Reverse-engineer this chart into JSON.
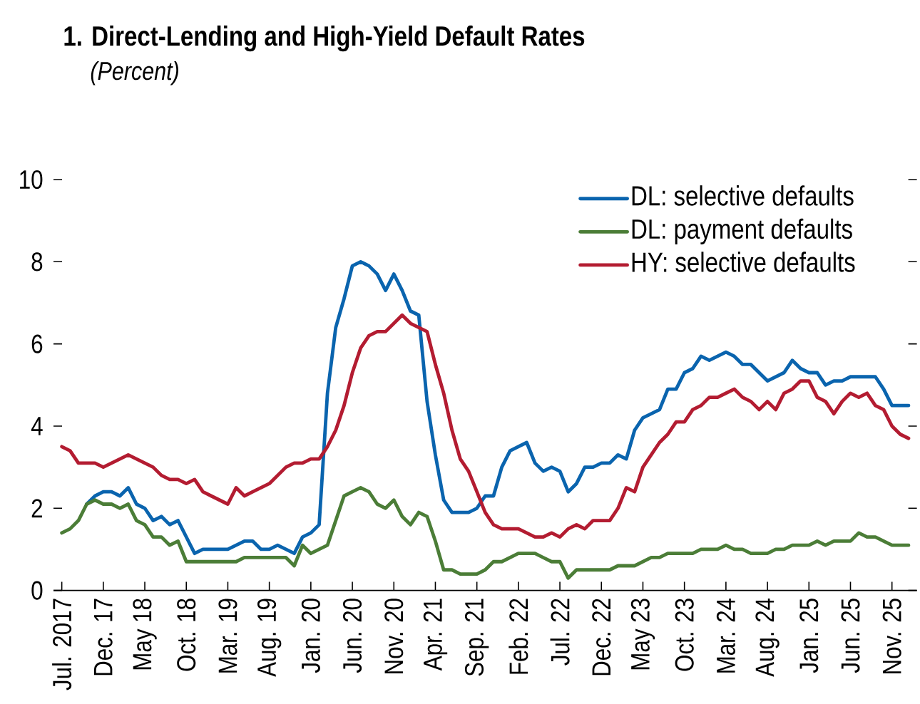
{
  "chart_data": {
    "type": "line",
    "title": "1. Direct-Lending and High-Yield Default Rates",
    "subtitle": "(Percent)",
    "xlim": [
      "2017-06",
      "2026-02"
    ],
    "xticks": [
      {
        "value": "2017-07",
        "label": "Jul. 2017"
      },
      {
        "value": "2017-12",
        "label": "Dec. 17"
      },
      {
        "value": "2018-05",
        "label": "May 18"
      },
      {
        "value": "2018-10",
        "label": "Oct. 18"
      },
      {
        "value": "2019-03",
        "label": "Mar. 19"
      },
      {
        "value": "2019-08",
        "label": "Aug. 19"
      },
      {
        "value": "2020-01",
        "label": "Jan. 20"
      },
      {
        "value": "2020-06",
        "label": "Jun. 20"
      },
      {
        "value": "2020-11",
        "label": "Nov. 20"
      },
      {
        "value": "2021-04",
        "label": "Apr. 21"
      },
      {
        "value": "2021-09",
        "label": "Sep. 21"
      },
      {
        "value": "2022-02",
        "label": "Feb. 22"
      },
      {
        "value": "2022-07",
        "label": "Jul. 22"
      },
      {
        "value": "2022-12",
        "label": "Dec. 22"
      },
      {
        "value": "2023-05",
        "label": "May 23"
      },
      {
        "value": "2023-10",
        "label": "Oct. 23"
      },
      {
        "value": "2024-03",
        "label": "Mar. 24"
      },
      {
        "value": "2024-08",
        "label": "Aug. 24"
      },
      {
        "value": "2025-01",
        "label": "Jan. 25"
      },
      {
        "value": "2025-06",
        "label": "Jun. 25"
      },
      {
        "value": "2025-11",
        "label": "Nov. 25"
      }
    ],
    "ylim": [
      0,
      10
    ],
    "yticks": [
      0,
      2,
      4,
      6,
      8,
      10
    ],
    "legend": "top right",
    "x": [
      "2017-07",
      "2017-08",
      "2017-09",
      "2017-10",
      "2017-11",
      "2017-12",
      "2018-01",
      "2018-02",
      "2018-03",
      "2018-04",
      "2018-05",
      "2018-06",
      "2018-07",
      "2018-08",
      "2018-09",
      "2018-10",
      "2018-11",
      "2018-12",
      "2019-01",
      "2019-02",
      "2019-03",
      "2019-04",
      "2019-05",
      "2019-06",
      "2019-07",
      "2019-08",
      "2019-09",
      "2019-10",
      "2019-11",
      "2019-12",
      "2020-01",
      "2020-02",
      "2020-03",
      "2020-04",
      "2020-05",
      "2020-06",
      "2020-07",
      "2020-08",
      "2020-09",
      "2020-10",
      "2020-11",
      "2020-12",
      "2021-01",
      "2021-02",
      "2021-03",
      "2021-04",
      "2021-05",
      "2021-06",
      "2021-07",
      "2021-08",
      "2021-09",
      "2021-10",
      "2021-11",
      "2021-12",
      "2022-01",
      "2022-02",
      "2022-03",
      "2022-04",
      "2022-05",
      "2022-06",
      "2022-07",
      "2022-08",
      "2022-09",
      "2022-10",
      "2022-11",
      "2022-12",
      "2023-01",
      "2023-02",
      "2023-03",
      "2023-04",
      "2023-05",
      "2023-06",
      "2023-07",
      "2023-08",
      "2023-09",
      "2023-10",
      "2023-11",
      "2023-12",
      "2024-01",
      "2024-02",
      "2024-03",
      "2024-04",
      "2024-05",
      "2024-06",
      "2024-07",
      "2024-08",
      "2024-09",
      "2024-10",
      "2024-11",
      "2024-12",
      "2025-01",
      "2025-02",
      "2025-03",
      "2025-04",
      "2025-05",
      "2025-06",
      "2025-07",
      "2025-08",
      "2025-09",
      "2025-10",
      "2025-11",
      "2025-12",
      "2026-01"
    ],
    "series": [
      {
        "name": "DL: selective defaults",
        "color": "#0a64ae",
        "x": [
          "2017-10",
          "2017-11",
          "2017-12",
          "2018-01",
          "2018-02",
          "2018-03",
          "2018-04",
          "2018-05",
          "2018-06",
          "2018-07",
          "2018-08",
          "2018-09",
          "2018-10",
          "2018-11",
          "2018-12",
          "2019-03",
          "2019-04",
          "2019-05",
          "2019-06",
          "2019-07",
          "2019-08",
          "2019-09",
          "2019-10",
          "2019-11",
          "2019-12",
          "2020-01",
          "2020-02",
          "2020-03",
          "2020-04",
          "2020-05",
          "2020-06",
          "2020-07",
          "2020-08",
          "2020-09",
          "2020-10",
          "2020-11",
          "2020-12",
          "2021-01",
          "2021-02",
          "2021-03",
          "2021-04",
          "2021-05",
          "2021-06",
          "2021-08",
          "2021-09",
          "2021-10",
          "2021-11",
          "2021-12",
          "2022-01",
          "2022-02",
          "2022-03",
          "2022-04",
          "2022-05",
          "2022-06",
          "2022-07",
          "2022-08",
          "2022-09",
          "2022-10",
          "2022-11",
          "2022-12",
          "2023-01",
          "2023-02",
          "2023-03",
          "2023-04",
          "2023-05",
          "2023-06",
          "2023-07",
          "2023-08",
          "2023-09",
          "2023-10",
          "2023-11",
          "2023-12",
          "2024-01",
          "2024-02",
          "2024-03",
          "2024-04",
          "2024-05",
          "2024-06",
          "2024-07",
          "2024-08",
          "2024-09",
          "2024-10",
          "2024-11",
          "2024-12",
          "2025-01",
          "2025-02",
          "2025-03",
          "2025-04",
          "2025-05",
          "2025-06",
          "2025-09",
          "2025-10",
          "2025-11",
          "2026-01"
        ],
        "values": [
          2.1,
          2.3,
          2.4,
          2.4,
          2.3,
          2.5,
          2.1,
          2.0,
          1.7,
          1.8,
          1.6,
          1.7,
          1.3,
          0.9,
          1.0,
          1.0,
          1.1,
          1.2,
          1.2,
          1.0,
          1.0,
          1.1,
          1.0,
          0.9,
          1.3,
          1.4,
          1.6,
          4.8,
          6.4,
          7.1,
          7.9,
          8.0,
          7.9,
          7.7,
          7.3,
          7.7,
          7.3,
          6.8,
          6.7,
          4.6,
          3.3,
          2.2,
          1.9,
          1.9,
          2.0,
          2.3,
          2.3,
          3.0,
          3.4,
          3.5,
          3.6,
          3.1,
          2.9,
          3.0,
          2.9,
          2.4,
          2.6,
          3.0,
          3.0,
          3.1,
          3.1,
          3.3,
          3.2,
          3.9,
          4.2,
          4.3,
          4.4,
          4.9,
          4.9,
          5.3,
          5.4,
          5.7,
          5.6,
          5.7,
          5.8,
          5.7,
          5.5,
          5.5,
          5.3,
          5.1,
          5.2,
          5.3,
          5.6,
          5.4,
          5.3,
          5.3,
          5.0,
          5.1,
          5.1,
          5.2,
          5.2,
          4.9,
          4.5,
          4.5
        ]
      },
      {
        "name": "DL: payment defaults",
        "color": "#4b7d37",
        "x": [
          "2017-07",
          "2017-08",
          "2017-09",
          "2017-10",
          "2017-11",
          "2017-12",
          "2018-01",
          "2018-02",
          "2018-03",
          "2018-04",
          "2018-05",
          "2018-06",
          "2018-07",
          "2018-08",
          "2018-09",
          "2018-10",
          "2019-04",
          "2019-05",
          "2019-10",
          "2019-11",
          "2019-12",
          "2020-01",
          "2020-03",
          "2020-04",
          "2020-05",
          "2020-06",
          "2020-07",
          "2020-08",
          "2020-09",
          "2020-10",
          "2020-11",
          "2020-12",
          "2021-01",
          "2021-02",
          "2021-03",
          "2021-04",
          "2021-05",
          "2021-06",
          "2021-07",
          "2021-09",
          "2021-10",
          "2021-11",
          "2021-12",
          "2022-02",
          "2022-04",
          "2022-05",
          "2022-06",
          "2022-07",
          "2022-08",
          "2022-09",
          "2023-01",
          "2023-02",
          "2023-04",
          "2023-06",
          "2023-07",
          "2023-08",
          "2023-11",
          "2023-12",
          "2024-02",
          "2024-03",
          "2024-04",
          "2024-05",
          "2024-06",
          "2024-08",
          "2024-09",
          "2024-10",
          "2024-11",
          "2025-01",
          "2025-02",
          "2025-03",
          "2025-04",
          "2025-06",
          "2025-07",
          "2025-08",
          "2025-09",
          "2025-11",
          "2026-01"
        ],
        "values": [
          1.4,
          1.5,
          1.7,
          2.1,
          2.2,
          2.1,
          2.1,
          2.0,
          2.1,
          1.7,
          1.6,
          1.3,
          1.3,
          1.1,
          1.2,
          0.7,
          0.7,
          0.8,
          0.8,
          0.6,
          1.1,
          0.9,
          1.1,
          1.7,
          2.3,
          2.4,
          2.5,
          2.4,
          2.1,
          2.0,
          2.2,
          1.8,
          1.6,
          1.9,
          1.8,
          1.2,
          0.5,
          0.5,
          0.4,
          0.4,
          0.5,
          0.7,
          0.7,
          0.9,
          0.9,
          0.8,
          0.7,
          0.7,
          0.3,
          0.5,
          0.5,
          0.6,
          0.6,
          0.8,
          0.8,
          0.9,
          0.9,
          1.0,
          1.0,
          1.1,
          1.0,
          1.0,
          0.9,
          0.9,
          1.0,
          1.0,
          1.1,
          1.1,
          1.2,
          1.1,
          1.2,
          1.2,
          1.4,
          1.3,
          1.3,
          1.1,
          1.1
        ]
      },
      {
        "name": "HY: selective defaults",
        "color": "#b31c31",
        "values": [
          3.5,
          3.4,
          3.1,
          3.1,
          3.1,
          3.0,
          3.1,
          3.2,
          3.3,
          3.2,
          3.1,
          3.0,
          2.8,
          2.7,
          2.7,
          2.6,
          2.7,
          2.4,
          2.3,
          2.2,
          2.1,
          2.5,
          2.3,
          2.4,
          2.5,
          2.6,
          2.8,
          3.0,
          3.1,
          3.1,
          3.2,
          3.2,
          3.5,
          3.9,
          4.5,
          5.3,
          5.9,
          6.2,
          6.3,
          6.3,
          6.5,
          6.7,
          6.5,
          6.4,
          6.3,
          5.5,
          4.8,
          3.9,
          3.2,
          2.9,
          2.4,
          1.9,
          1.6,
          1.5,
          1.5,
          1.5,
          1.4,
          1.3,
          1.3,
          1.4,
          1.3,
          1.5,
          1.6,
          1.5,
          1.7,
          1.7,
          1.7,
          2.0,
          2.5,
          2.4,
          3.0,
          3.3,
          3.6,
          3.8,
          4.1,
          4.1,
          4.4,
          4.5,
          4.7,
          4.7,
          4.8,
          4.9,
          4.7,
          4.6,
          4.4,
          4.6,
          4.4,
          4.8,
          4.9,
          5.1,
          5.1,
          4.7,
          4.6,
          4.3,
          4.6,
          4.8,
          4.7,
          4.8,
          4.5,
          4.4,
          4.0,
          3.8,
          3.7
        ]
      }
    ]
  }
}
